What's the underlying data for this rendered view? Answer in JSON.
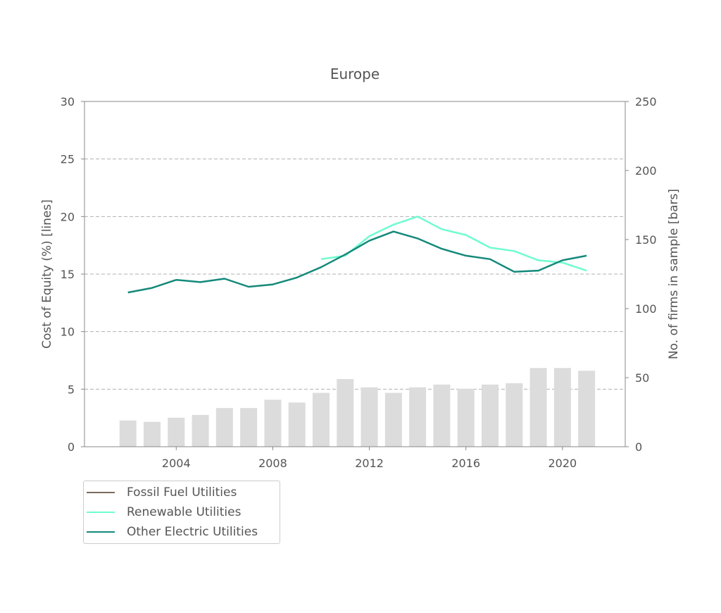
{
  "chart_data": {
    "type": "bar+line",
    "title": "Europe",
    "ylabel_left": "Cost of Equity (%) [lines]",
    "ylabel_right": "No. of firms in sample [bars]",
    "xlim": [
      2000.2,
      2022.6
    ],
    "ylim_left": [
      0,
      30
    ],
    "ylim_right": [
      0,
      250
    ],
    "xticks": [
      2004,
      2008,
      2012,
      2016,
      2020
    ],
    "yticks_left": [
      0,
      5,
      10,
      15,
      20,
      25,
      30
    ],
    "yticks_right": [
      0,
      50,
      100,
      150,
      200,
      250
    ],
    "grid": "horizontal dashed",
    "legend_position": "below-left",
    "bars": {
      "name": "No. of firms",
      "color": "#dcdcdc",
      "x": [
        2002,
        2003,
        2004,
        2005,
        2006,
        2007,
        2008,
        2009,
        2010,
        2011,
        2012,
        2013,
        2014,
        2015,
        2016,
        2017,
        2018,
        2019,
        2020,
        2021
      ],
      "values": [
        19,
        18,
        21,
        23,
        28,
        28,
        34,
        32,
        39,
        49,
        43,
        39,
        43,
        45,
        42,
        45,
        46,
        57,
        57,
        55
      ]
    },
    "series": [
      {
        "name": "Fossil Fuel Utilities",
        "color": "#7b6b5e",
        "x": [],
        "values": []
      },
      {
        "name": "Renewable Utilities",
        "color": "#6ffcd0",
        "x": [
          2010,
          2011,
          2012,
          2013,
          2014,
          2015,
          2016,
          2017,
          2018,
          2019,
          2020,
          2021
        ],
        "values": [
          16.3,
          16.6,
          18.3,
          19.3,
          20.0,
          18.9,
          18.4,
          17.3,
          17.0,
          16.2,
          16.0,
          15.3
        ]
      },
      {
        "name": "Other Electric Utilities",
        "color": "#14897a",
        "x": [
          2002,
          2003,
          2004,
          2005,
          2006,
          2007,
          2008,
          2009,
          2010,
          2011,
          2012,
          2013,
          2014,
          2015,
          2016,
          2017,
          2018,
          2019,
          2020,
          2021
        ],
        "values": [
          13.4,
          13.8,
          14.5,
          14.3,
          14.6,
          13.9,
          14.1,
          14.7,
          15.6,
          16.7,
          17.9,
          18.7,
          18.1,
          17.2,
          16.6,
          16.3,
          15.2,
          15.3,
          16.2,
          16.6
        ]
      }
    ]
  }
}
